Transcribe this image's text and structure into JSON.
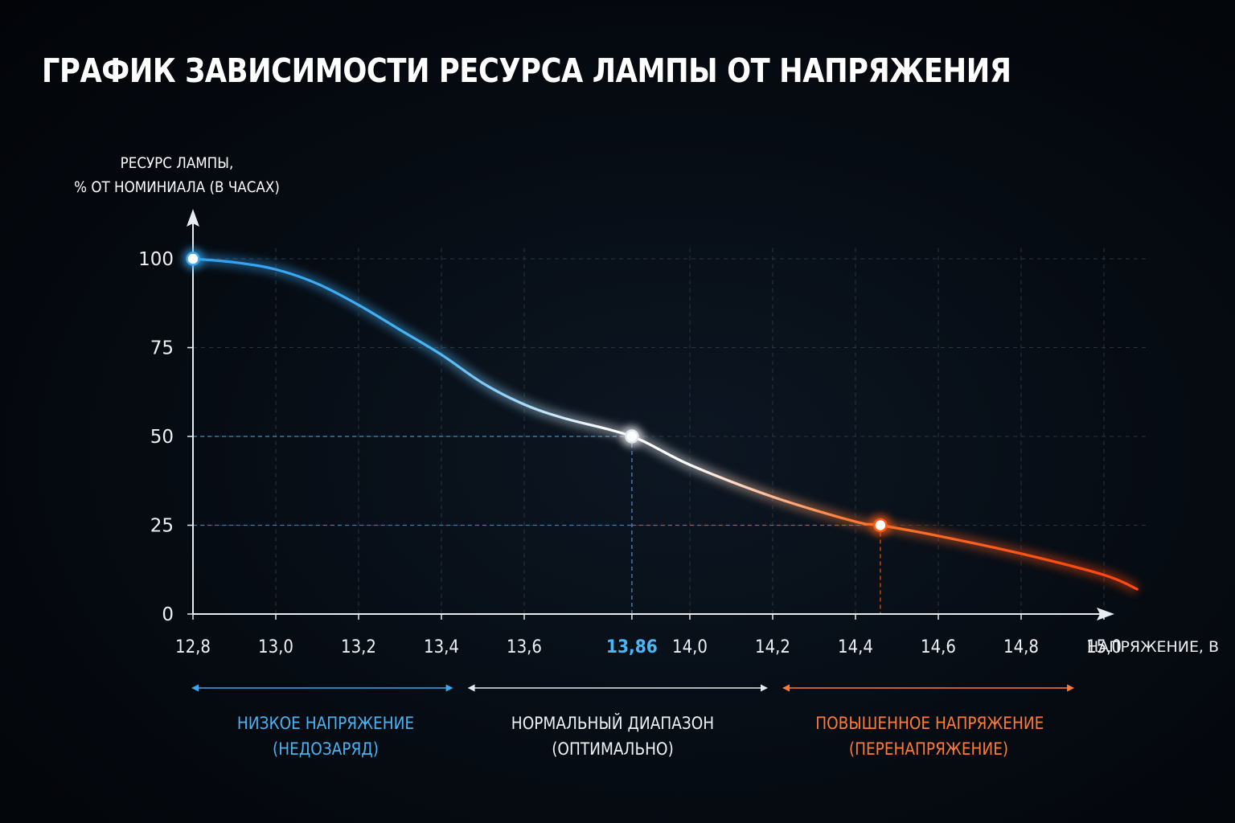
{
  "title": "ГРАФИК ЗАВИСИМОСТИ РЕСУРСА ЛАМПЫ ОТ НАПРЯЖЕНИЯ",
  "colors": {
    "low": "#3aa7ee",
    "normal": "#f5f7fa",
    "high": "#ff5a14",
    "grid": "#2a3440",
    "axis": "#e8ecf0"
  },
  "chart_data": {
    "type": "line",
    "ylabel_lines": [
      "РЕСУРС ЛАМПЫ,",
      "% ОТ НОМИНИАЛА (В ЧАСАХ)"
    ],
    "xlabel": "НАПРЯЖЕНИЕ, В",
    "xlim": [
      12.8,
      15.1
    ],
    "ylim": [
      0,
      100
    ],
    "x_ticks": [
      "12,8",
      "13,0",
      "13,2",
      "13,4",
      "13,6",
      "13,86",
      "14,0",
      "14,2",
      "14,4",
      "14,6",
      "14,8",
      "15,0"
    ],
    "x_tick_values": [
      12.8,
      13.0,
      13.2,
      13.4,
      13.6,
      13.86,
      14.0,
      14.2,
      14.4,
      14.6,
      14.8,
      15.0
    ],
    "highlight_tick": "13,86",
    "y_ticks": [
      "0",
      "25",
      "50",
      "75",
      "100"
    ],
    "y_tick_values": [
      0,
      25,
      50,
      75,
      100
    ],
    "grid": true,
    "series": [
      {
        "x": [
          12.8,
          12.9,
          13.0,
          13.1,
          13.2,
          13.3,
          13.4,
          13.5,
          13.6,
          13.7,
          13.86,
          14.0,
          14.2,
          14.4,
          14.46,
          14.6,
          14.8,
          15.0,
          15.08
        ],
        "y": [
          100,
          99,
          97,
          93,
          87,
          80,
          73,
          65,
          59,
          55,
          50,
          42,
          33,
          26,
          25,
          22,
          17,
          11,
          7
        ]
      }
    ],
    "highlighted_points": [
      {
        "x": 12.8,
        "y": 100
      },
      {
        "x": 13.86,
        "y": 50
      },
      {
        "x": 14.46,
        "y": 25
      }
    ],
    "zones": [
      {
        "from": 12.8,
        "to": 13.44,
        "lines": [
          "НИЗКОЕ НАПРЯЖЕНИЕ",
          "(НЕДОЗАРЯД)"
        ]
      },
      {
        "from": 13.44,
        "to": 14.2,
        "lines": [
          "НОРМАЛЬНЫЙ ДИАПАЗОН",
          "(ОПТИМАЛЬНО)"
        ]
      },
      {
        "from": 14.2,
        "to": 14.94,
        "lines": [
          "ПОВЫШЕННОЕ НАПРЯЖЕНИЕ",
          "(ПЕРЕНАПРЯЖЕНИЕ)"
        ]
      }
    ]
  }
}
